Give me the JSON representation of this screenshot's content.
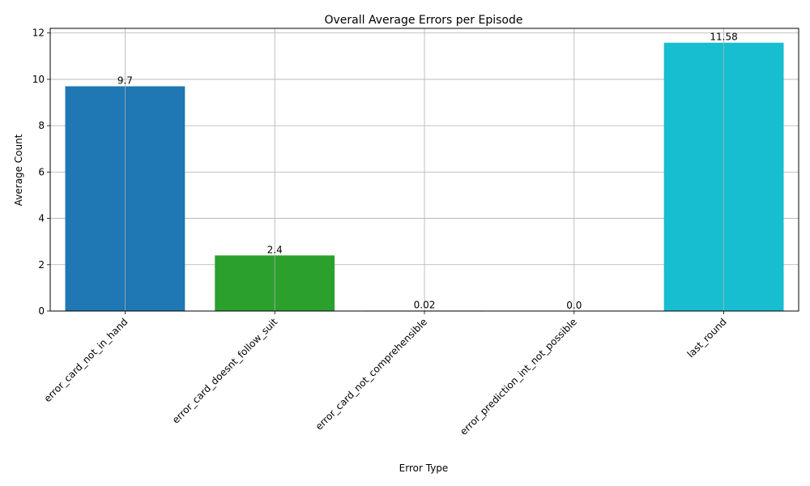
{
  "chart_data": {
    "type": "bar",
    "title": "Overall Average Errors per Episode",
    "xlabel": "Error Type",
    "ylabel": "Average Count",
    "categories": [
      "error_card_not_in_hand",
      "error_card_doesnt_follow_suit",
      "error_card_not_comprehensible",
      "error_prediction_int_not_possible",
      "last_round"
    ],
    "values": [
      9.7,
      2.4,
      0.02,
      0.0,
      11.58
    ],
    "value_labels": [
      "9.7",
      "2.4",
      "0.02",
      "0.0",
      "11.58"
    ],
    "colors": [
      "#1f77b4",
      "#2ca02c",
      "#8c564b",
      "#9467bd",
      "#17becf"
    ],
    "ylim": [
      0,
      12.2
    ],
    "yticks": [
      0,
      2,
      4,
      6,
      8,
      10,
      12
    ],
    "grid": true,
    "legend": "none"
  }
}
